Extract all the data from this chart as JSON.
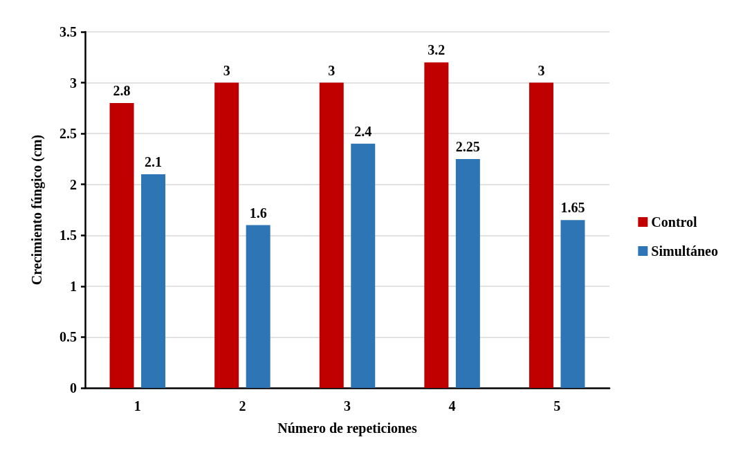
{
  "chart_data": {
    "type": "bar",
    "xlabel": "Número de repeticiones",
    "ylabel": "Crecimiento fúngico (cm)",
    "categories": [
      "1",
      "2",
      "3",
      "4",
      "5"
    ],
    "series": [
      {
        "name": "Control",
        "color": "#c00000",
        "values": [
          2.8,
          3,
          3,
          3.2,
          3
        ]
      },
      {
        "name": "Simultáneo",
        "color": "#2e75b6",
        "values": [
          2.1,
          1.6,
          2.4,
          2.25,
          1.65
        ]
      }
    ],
    "ylim": [
      0,
      3.5
    ],
    "yticks": [
      0,
      0.5,
      1,
      1.5,
      2,
      2.5,
      3,
      3.5
    ],
    "grid": "y",
    "legend": "right",
    "data_labels": true
  }
}
